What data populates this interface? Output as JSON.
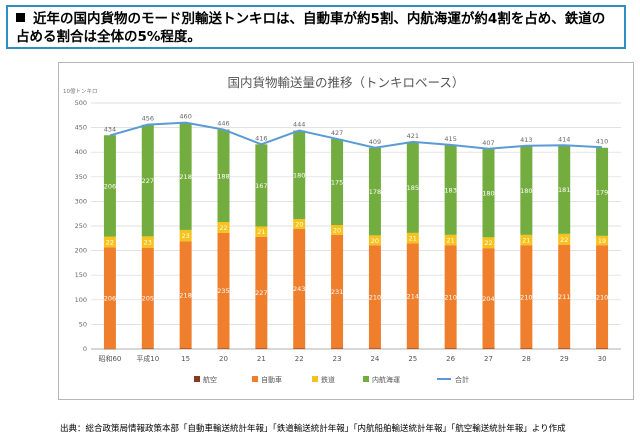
{
  "headline": {
    "text": "近年の国内貨物のモード別輸送トンキロは、自動車が約5割、内航海運が約4割を占め、鉄道の占める割合は全体の5%程度。"
  },
  "source": "出典：総合政策局情報政策本部「自動車輸送統計年報」「鉄道輸送統計年報」「内航船舶輸送統計年報」「航空輸送統計年報」より作成",
  "chart_data": {
    "type": "bar",
    "stacked": true,
    "title": "国内貨物輸送量の推移（トンキロベース）",
    "ylabel": "10億トンキロ",
    "ylim": [
      0,
      500
    ],
    "yticks": [
      0,
      50,
      100,
      150,
      200,
      250,
      300,
      350,
      400,
      450,
      500
    ],
    "grid": true,
    "legend_position": "bottom",
    "categories": [
      "昭和60",
      "平成10",
      "15",
      "20",
      "21",
      "22",
      "23",
      "24",
      "25",
      "26",
      "27",
      "28",
      "29",
      "30"
    ],
    "series": [
      {
        "name": "航空",
        "color": "#8b3a1e",
        "values": [
          0.5,
          0.9,
          1.0,
          1.1,
          1.0,
          1.0,
          1.0,
          1.0,
          1.0,
          1.0,
          1.0,
          1.0,
          1.0,
          1.0
        ],
        "show_labels": false
      },
      {
        "name": "自動車",
        "color": "#f07f2d",
        "values": [
          206,
          205,
          218,
          235,
          227,
          243,
          231,
          210,
          214,
          210,
          204,
          210,
          211,
          210
        ],
        "show_labels": true
      },
      {
        "name": "鉄道",
        "color": "#f6c21b",
        "values": [
          22,
          23,
          23,
          22,
          21,
          20,
          20,
          20,
          21,
          21,
          22,
          21,
          22,
          19
        ],
        "show_labels": true
      },
      {
        "name": "内航海運",
        "color": "#74ad3f",
        "values": [
          206,
          227,
          218,
          188,
          167,
          180,
          175,
          178,
          185,
          183,
          180,
          180,
          181,
          179
        ],
        "show_labels": true
      }
    ],
    "total": {
      "name": "合計",
      "color": "#5b9bd5",
      "values": [
        434,
        456,
        460,
        446,
        416,
        444,
        427,
        409,
        421,
        415,
        407,
        413,
        414,
        410
      ]
    }
  }
}
